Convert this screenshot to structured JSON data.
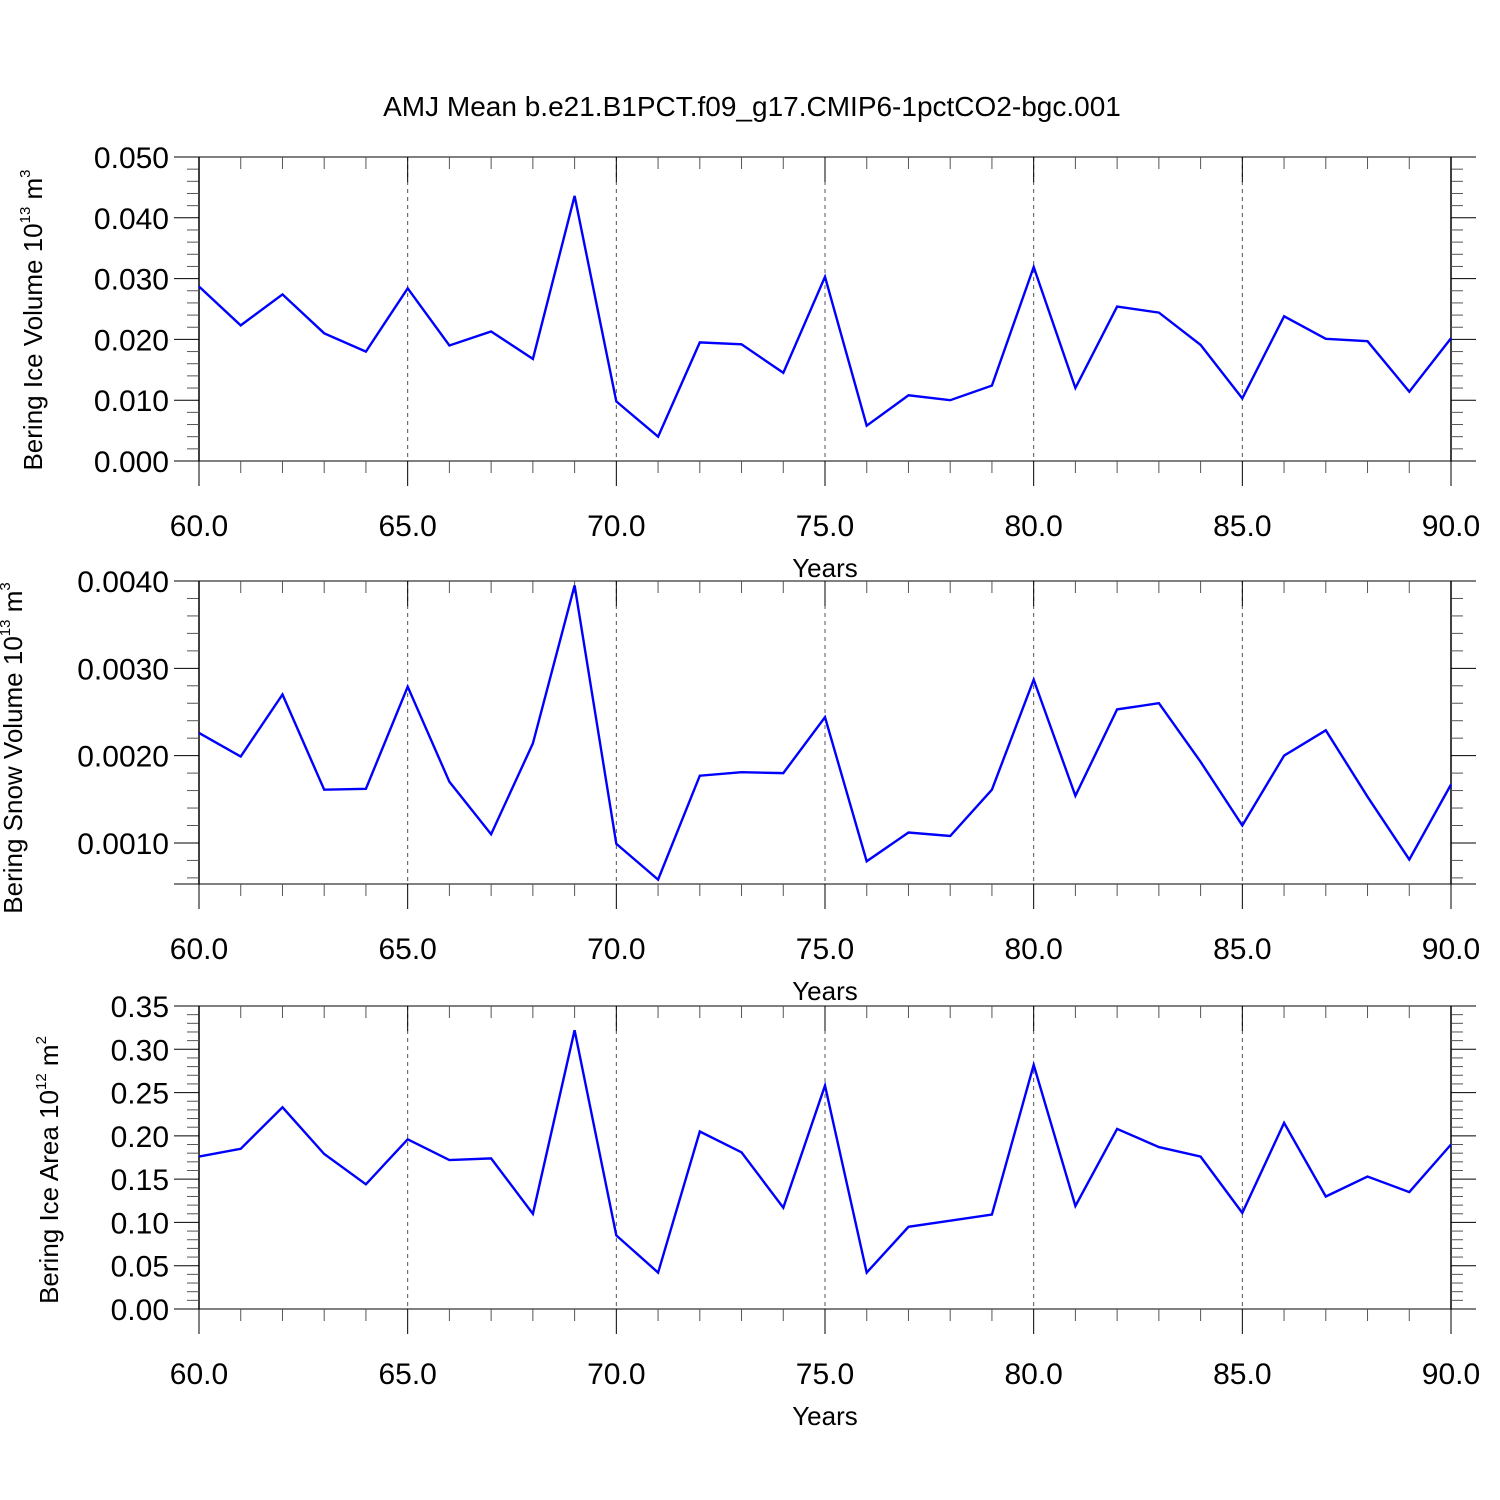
{
  "figure": {
    "title": "AMJ Mean b.e21.B1PCT.f09_g17.CMIP6-1pctCO2-bgc.001"
  },
  "chart_data": [
    {
      "type": "line",
      "title": "",
      "xlabel": "Years",
      "ylabel": {
        "prefix": "Bering Ice Volume 10",
        "exp": "13",
        "unit": " m",
        "unit_exp": "3"
      },
      "xlim": [
        60,
        90
      ],
      "ylim": [
        0,
        0.05
      ],
      "xticks": [
        60,
        65,
        70,
        75,
        80,
        85,
        90
      ],
      "xtick_labels": [
        "60.0",
        "65.0",
        "70.0",
        "75.0",
        "80.0",
        "85.0",
        "90.0"
      ],
      "yticks": [
        0,
        0.01,
        0.02,
        0.03,
        0.04,
        0.05
      ],
      "ytick_labels": [
        "0.000",
        "0.010",
        "0.020",
        "0.030",
        "0.040",
        "0.050"
      ],
      "grid": "vertical dashed at major x ticks",
      "color": "#0000ff",
      "x": [
        60,
        61,
        62,
        63,
        64,
        65,
        66,
        67,
        68,
        69,
        70,
        71,
        72,
        73,
        74,
        75,
        76,
        77,
        78,
        79,
        80,
        81,
        82,
        83,
        84,
        85,
        86,
        87,
        88,
        89,
        90
      ],
      "y": [
        0.0287,
        0.0223,
        0.0274,
        0.021,
        0.018,
        0.0284,
        0.019,
        0.0213,
        0.0168,
        0.0436,
        0.0098,
        0.004,
        0.0195,
        0.0192,
        0.0145,
        0.0303,
        0.0058,
        0.0108,
        0.01,
        0.0124,
        0.0319,
        0.012,
        0.0254,
        0.0244,
        0.0191,
        0.0103,
        0.0238,
        0.0201,
        0.0197,
        0.0114,
        0.0202
      ]
    },
    {
      "type": "line",
      "title": "",
      "xlabel": "Years",
      "ylabel": {
        "prefix": "Bering Snow Volume 10",
        "exp": "13",
        "unit": " m",
        "unit_exp": "3"
      },
      "xlim": [
        60,
        90
      ],
      "ylim": [
        0.00053,
        0.004
      ],
      "xticks": [
        60,
        65,
        70,
        75,
        80,
        85,
        90
      ],
      "xtick_labels": [
        "60.0",
        "65.0",
        "70.0",
        "75.0",
        "80.0",
        "85.0",
        "90.0"
      ],
      "yticks": [
        0.001,
        0.002,
        0.003,
        0.004
      ],
      "ytick_labels": [
        "0.0010",
        "0.0020",
        "0.0030",
        "0.0040"
      ],
      "grid": "vertical dashed at major x ticks",
      "color": "#0000ff",
      "x": [
        60,
        61,
        62,
        63,
        64,
        65,
        66,
        67,
        68,
        69,
        70,
        71,
        72,
        73,
        74,
        75,
        76,
        77,
        78,
        79,
        80,
        81,
        82,
        83,
        84,
        85,
        86,
        87,
        88,
        89,
        90
      ],
      "y": [
        0.00226,
        0.00199,
        0.0027,
        0.00161,
        0.00162,
        0.00279,
        0.0017,
        0.0011,
        0.00214,
        0.00395,
        0.00099,
        0.00058,
        0.00177,
        0.00181,
        0.0018,
        0.00244,
        0.00079,
        0.00112,
        0.00108,
        0.00161,
        0.00287,
        0.00154,
        0.00253,
        0.0026,
        0.00193,
        0.0012,
        0.002,
        0.00229,
        0.00153,
        0.00081,
        0.00167
      ]
    },
    {
      "type": "line",
      "title": "",
      "xlabel": "Years",
      "ylabel": {
        "prefix": "Bering Ice Area 10",
        "exp": "12",
        "unit": " m",
        "unit_exp": "2"
      },
      "xlim": [
        60,
        90
      ],
      "ylim": [
        0,
        0.35
      ],
      "xticks": [
        60,
        65,
        70,
        75,
        80,
        85,
        90
      ],
      "xtick_labels": [
        "60.0",
        "65.0",
        "70.0",
        "75.0",
        "80.0",
        "85.0",
        "90.0"
      ],
      "yticks": [
        0,
        0.05,
        0.1,
        0.15,
        0.2,
        0.25,
        0.3,
        0.35
      ],
      "ytick_labels": [
        "0.00",
        "0.05",
        "0.10",
        "0.15",
        "0.20",
        "0.25",
        "0.30",
        "0.35"
      ],
      "grid": "vertical dashed at major x ticks",
      "color": "#0000ff",
      "x": [
        60,
        61,
        62,
        63,
        64,
        65,
        66,
        67,
        68,
        69,
        70,
        71,
        72,
        73,
        74,
        75,
        76,
        77,
        78,
        79,
        80,
        81,
        82,
        83,
        84,
        85,
        86,
        87,
        88,
        89,
        90
      ],
      "y": [
        0.176,
        0.185,
        0.233,
        0.179,
        0.144,
        0.196,
        0.172,
        0.174,
        0.11,
        0.322,
        0.085,
        0.042,
        0.205,
        0.181,
        0.117,
        0.258,
        0.042,
        0.095,
        0.102,
        0.109,
        0.282,
        0.119,
        0.208,
        0.187,
        0.176,
        0.111,
        0.215,
        0.13,
        0.153,
        0.135,
        0.19
      ]
    }
  ]
}
